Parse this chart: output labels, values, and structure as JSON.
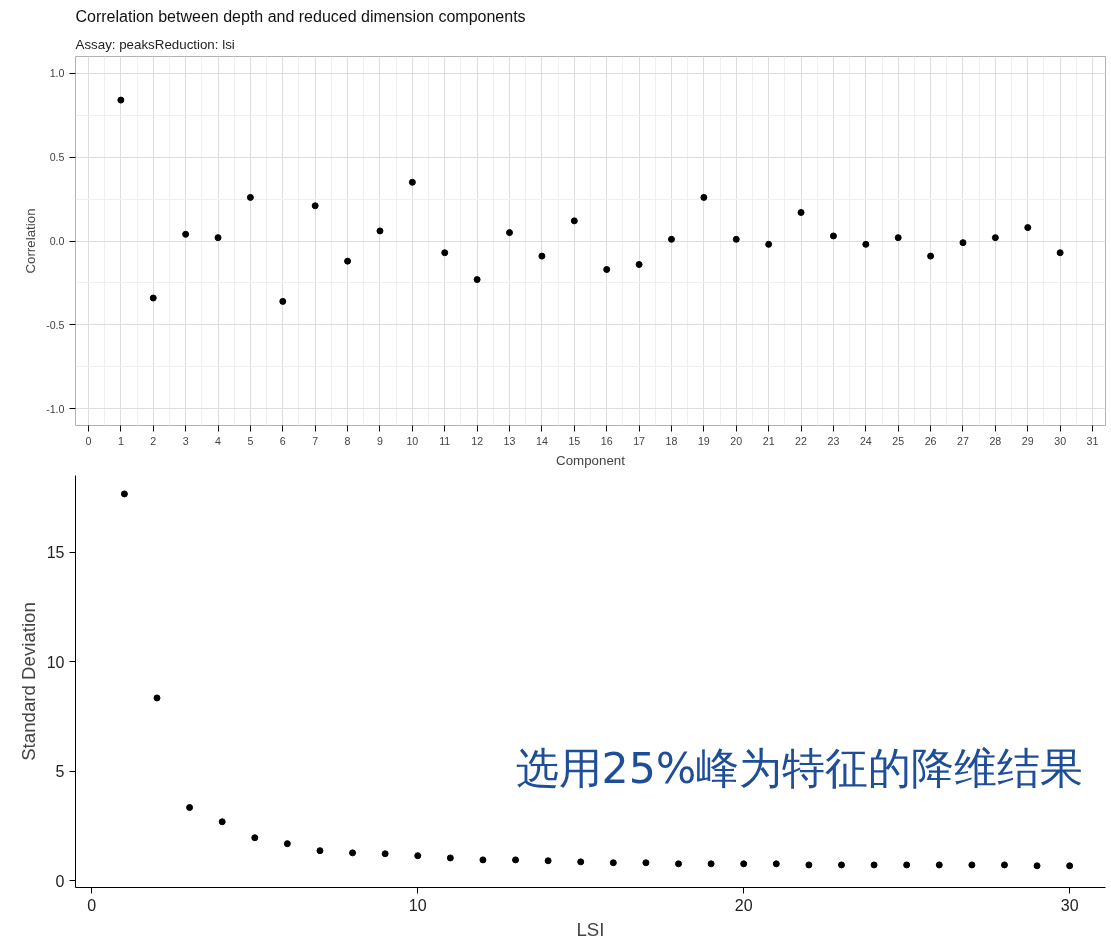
{
  "chart_data": [
    {
      "type": "scatter",
      "title": "Correlation between depth and reduced dimension components",
      "subtitle": "Assay: peaksReduction: lsi",
      "xlabel": "Component",
      "ylabel": "Correlation",
      "x": [
        1,
        2,
        3,
        4,
        5,
        6,
        7,
        8,
        9,
        10,
        11,
        12,
        13,
        14,
        15,
        16,
        17,
        18,
        19,
        20,
        21,
        22,
        23,
        24,
        25,
        26,
        27,
        28,
        29,
        30
      ],
      "series": [
        {
          "color": "#000000",
          "values": [
            0.84,
            -0.34,
            0.04,
            0.02,
            0.26,
            -0.36,
            0.21,
            -0.12,
            0.06,
            0.35,
            -0.07,
            -0.23,
            0.05,
            -0.09,
            0.12,
            -0.17,
            -0.14,
            0.01,
            0.26,
            0.01,
            -0.02,
            0.17,
            0.03,
            -0.02,
            0.02,
            -0.09,
            -0.01,
            0.02,
            0.08,
            -0.07
          ]
        }
      ],
      "xlim": [
        -0.4,
        31.4
      ],
      "xticks": [
        0,
        1,
        2,
        3,
        4,
        5,
        6,
        7,
        8,
        9,
        10,
        11,
        12,
        13,
        14,
        15,
        16,
        17,
        18,
        19,
        20,
        21,
        22,
        23,
        24,
        25,
        26,
        27,
        28,
        29,
        30,
        31
      ],
      "ylim": [
        -1.1,
        1.1
      ],
      "yticks": [
        {
          "value": -1,
          "label": "-1.0"
        },
        {
          "value": -0.5,
          "label": "-0.5"
        },
        {
          "value": 0,
          "label": "0.0"
        },
        {
          "value": 0.5,
          "label": "0.5"
        },
        {
          "value": 1,
          "label": "1.0"
        }
      ],
      "grid": true,
      "marker": "circle"
    },
    {
      "type": "scatter",
      "xlabel": "LSI",
      "ylabel": "Standard Deviation",
      "annotations": [
        "选用25%峰为特征的降维结果"
      ],
      "x": [
        1,
        2,
        3,
        4,
        5,
        6,
        7,
        8,
        9,
        10,
        11,
        12,
        13,
        14,
        15,
        16,
        17,
        18,
        19,
        20,
        21,
        22,
        23,
        24,
        25,
        26,
        27,
        28,
        29,
        30
      ],
      "series": [
        {
          "color": "#000000",
          "values": [
            17.66,
            8.35,
            3.35,
            2.7,
            1.97,
            1.7,
            1.38,
            1.28,
            1.24,
            1.15,
            1.05,
            0.96,
            0.96,
            0.92,
            0.87,
            0.83,
            0.83,
            0.78,
            0.78,
            0.78,
            0.78,
            0.73,
            0.73,
            0.73,
            0.73,
            0.73,
            0.73,
            0.73,
            0.69,
            0.69
          ]
        }
      ],
      "xlim": [
        -0.5,
        31.1
      ],
      "xticks": [
        0,
        10,
        20,
        30
      ],
      "ylim": [
        -0.3,
        18.5
      ],
      "yticks": [
        0,
        5,
        10,
        15
      ],
      "grid": false,
      "marker": "circle"
    }
  ]
}
